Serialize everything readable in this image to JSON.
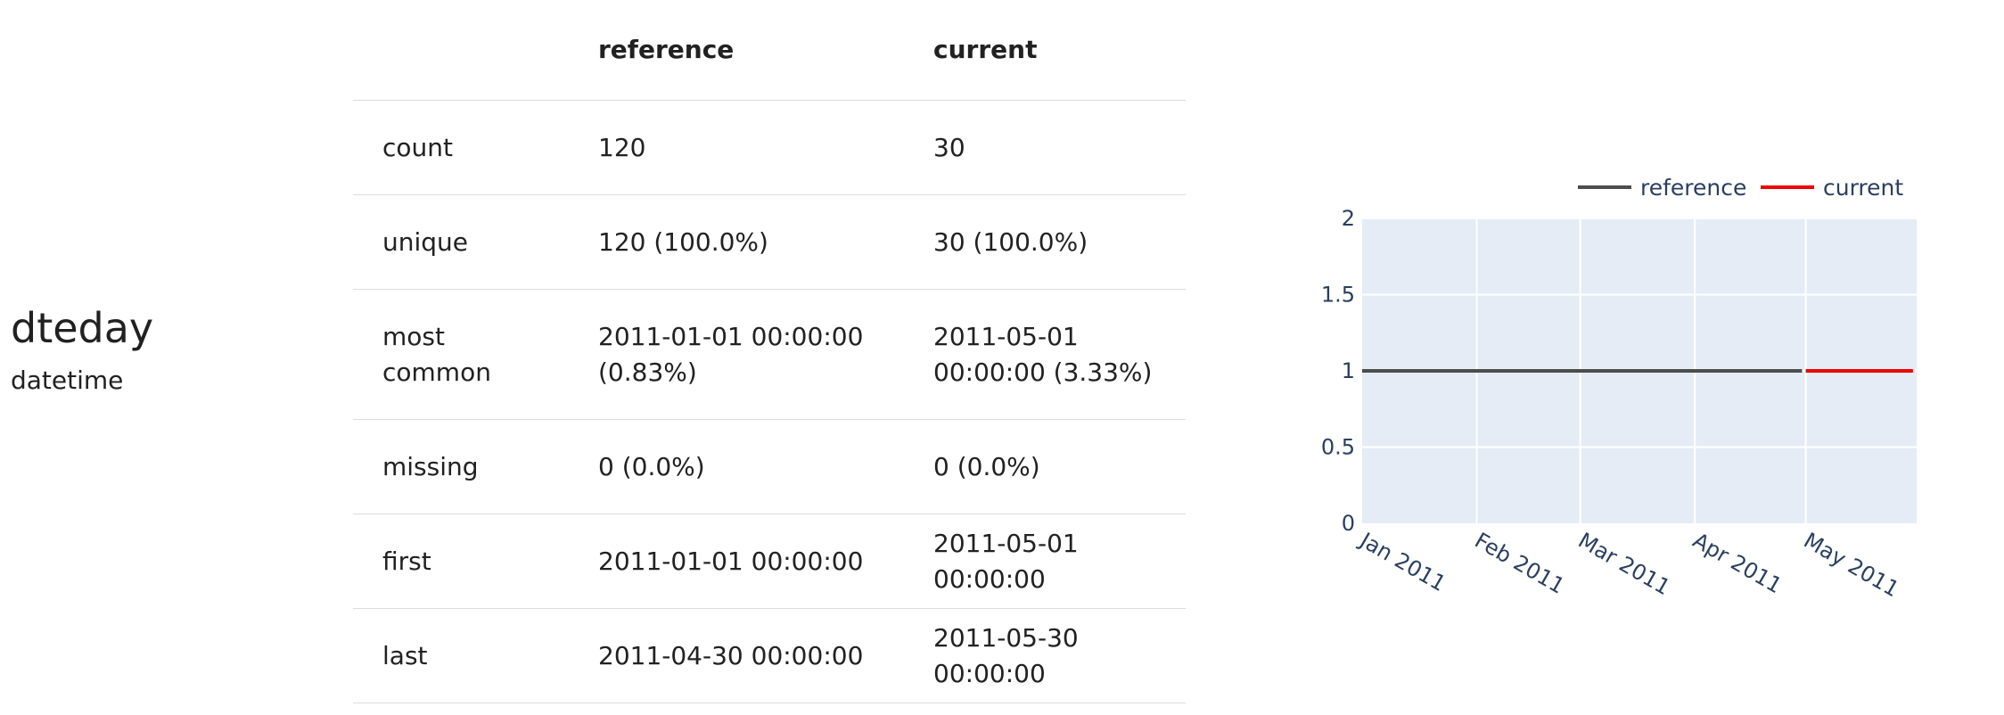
{
  "feature": {
    "name": "dteday",
    "type": "datetime"
  },
  "table": {
    "headers": [
      "",
      "reference",
      "current"
    ],
    "rows": [
      [
        "count",
        "120",
        "30"
      ],
      [
        "unique",
        "120 (100.0%)",
        "30 (100.0%)"
      ],
      [
        "most common",
        "2011-01-01 00:00:00 (0.83%)",
        "2011-05-01 00:00:00 (3.33%)"
      ],
      [
        "missing",
        "0 (0.0%)",
        "0 (0.0%)"
      ],
      [
        "first",
        "2011-01-01 00:00:00",
        "2011-05-01 00:00:00"
      ],
      [
        "last",
        "2011-04-30 00:00:00",
        "2011-05-30 00:00:00"
      ]
    ]
  },
  "chart_data": {
    "type": "line",
    "x_type": "date",
    "ylim": [
      0,
      2
    ],
    "xlim": [
      "2011-01-01",
      "2011-05-31"
    ],
    "yticks": [
      "0",
      "0.5",
      "1",
      "1.5",
      "2"
    ],
    "xticks": [
      {
        "date": "2011-01-01",
        "label": "Jan 2011"
      },
      {
        "date": "2011-02-01",
        "label": "Feb 2011"
      },
      {
        "date": "2011-03-01",
        "label": "Mar 2011"
      },
      {
        "date": "2011-04-01",
        "label": "Apr 2011"
      },
      {
        "date": "2011-05-01",
        "label": "May 2011"
      }
    ],
    "legend_position": "top-right",
    "grid": true,
    "background_color": "#e5ecf6",
    "series": [
      {
        "name": "reference",
        "color": "#4d4d4d",
        "x": [
          "2011-01-01",
          "2011-04-30"
        ],
        "y": [
          1,
          1
        ]
      },
      {
        "name": "current",
        "color": "#ed0400",
        "x": [
          "2011-05-01",
          "2011-05-30"
        ],
        "y": [
          1,
          1
        ]
      }
    ]
  }
}
